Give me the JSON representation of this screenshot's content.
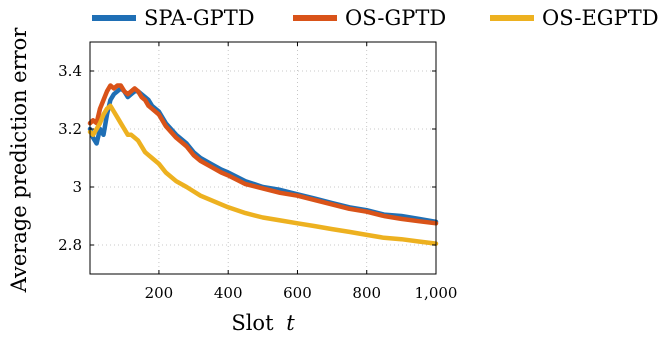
{
  "chart_data": {
    "type": "line",
    "xlabel": "Slot",
    "xlabel_var": "t",
    "ylabel": "Average prediction error",
    "xlim": [
      1,
      1000
    ],
    "ylim": [
      2.7,
      3.5
    ],
    "xticks": [
      200,
      400,
      600,
      800,
      1000
    ],
    "xtick_labels": [
      "200",
      "400",
      "600",
      "800",
      "1,000"
    ],
    "yticks": [
      2.8,
      3.0,
      3.2,
      3.4
    ],
    "ytick_labels": [
      "2.8",
      "3",
      "3.2",
      "3.4"
    ],
    "grid": true,
    "legend_position": "top",
    "series": [
      {
        "name": "SPA-GPTD",
        "color": "#1f6fb5",
        "x": [
          1,
          10,
          20,
          30,
          40,
          50,
          60,
          70,
          80,
          90,
          100,
          110,
          120,
          130,
          140,
          150,
          160,
          170,
          180,
          200,
          220,
          250,
          280,
          300,
          320,
          350,
          380,
          400,
          450,
          500,
          550,
          600,
          650,
          700,
          750,
          800,
          850,
          900,
          950,
          1000
        ],
        "y": [
          3.2,
          3.17,
          3.15,
          3.2,
          3.18,
          3.25,
          3.3,
          3.32,
          3.33,
          3.34,
          3.33,
          3.31,
          3.32,
          3.33,
          3.33,
          3.32,
          3.31,
          3.3,
          3.28,
          3.26,
          3.22,
          3.18,
          3.15,
          3.12,
          3.1,
          3.08,
          3.06,
          3.05,
          3.02,
          3.0,
          2.99,
          2.975,
          2.96,
          2.945,
          2.93,
          2.92,
          2.905,
          2.9,
          2.89,
          2.88
        ]
      },
      {
        "name": "OS-GPTD",
        "color": "#d95319",
        "x": [
          1,
          10,
          20,
          30,
          40,
          50,
          60,
          70,
          80,
          90,
          100,
          110,
          120,
          130,
          140,
          150,
          160,
          170,
          180,
          200,
          220,
          250,
          280,
          300,
          320,
          350,
          380,
          400,
          450,
          500,
          550,
          600,
          650,
          700,
          750,
          800,
          850,
          900,
          950,
          1000
        ],
        "y": [
          3.22,
          3.23,
          3.22,
          3.27,
          3.3,
          3.33,
          3.35,
          3.34,
          3.35,
          3.35,
          3.33,
          3.32,
          3.33,
          3.34,
          3.33,
          3.31,
          3.3,
          3.28,
          3.27,
          3.25,
          3.21,
          3.17,
          3.14,
          3.11,
          3.09,
          3.07,
          3.05,
          3.04,
          3.01,
          2.995,
          2.98,
          2.97,
          2.955,
          2.94,
          2.925,
          2.915,
          2.9,
          2.89,
          2.882,
          2.875
        ]
      },
      {
        "name": "OS-EGPTD",
        "color": "#edb120",
        "x": [
          1,
          10,
          20,
          30,
          40,
          50,
          60,
          70,
          80,
          90,
          100,
          110,
          120,
          130,
          140,
          150,
          160,
          170,
          180,
          200,
          220,
          250,
          280,
          300,
          320,
          350,
          380,
          400,
          450,
          500,
          550,
          600,
          650,
          700,
          750,
          800,
          850,
          900,
          950,
          1000
        ],
        "y": [
          3.19,
          3.18,
          3.2,
          3.22,
          3.25,
          3.27,
          3.28,
          3.26,
          3.24,
          3.22,
          3.2,
          3.18,
          3.18,
          3.17,
          3.16,
          3.14,
          3.12,
          3.11,
          3.1,
          3.08,
          3.05,
          3.02,
          3.0,
          2.985,
          2.97,
          2.955,
          2.94,
          2.93,
          2.91,
          2.895,
          2.885,
          2.875,
          2.865,
          2.855,
          2.845,
          2.835,
          2.825,
          2.82,
          2.812,
          2.805
        ]
      }
    ]
  }
}
